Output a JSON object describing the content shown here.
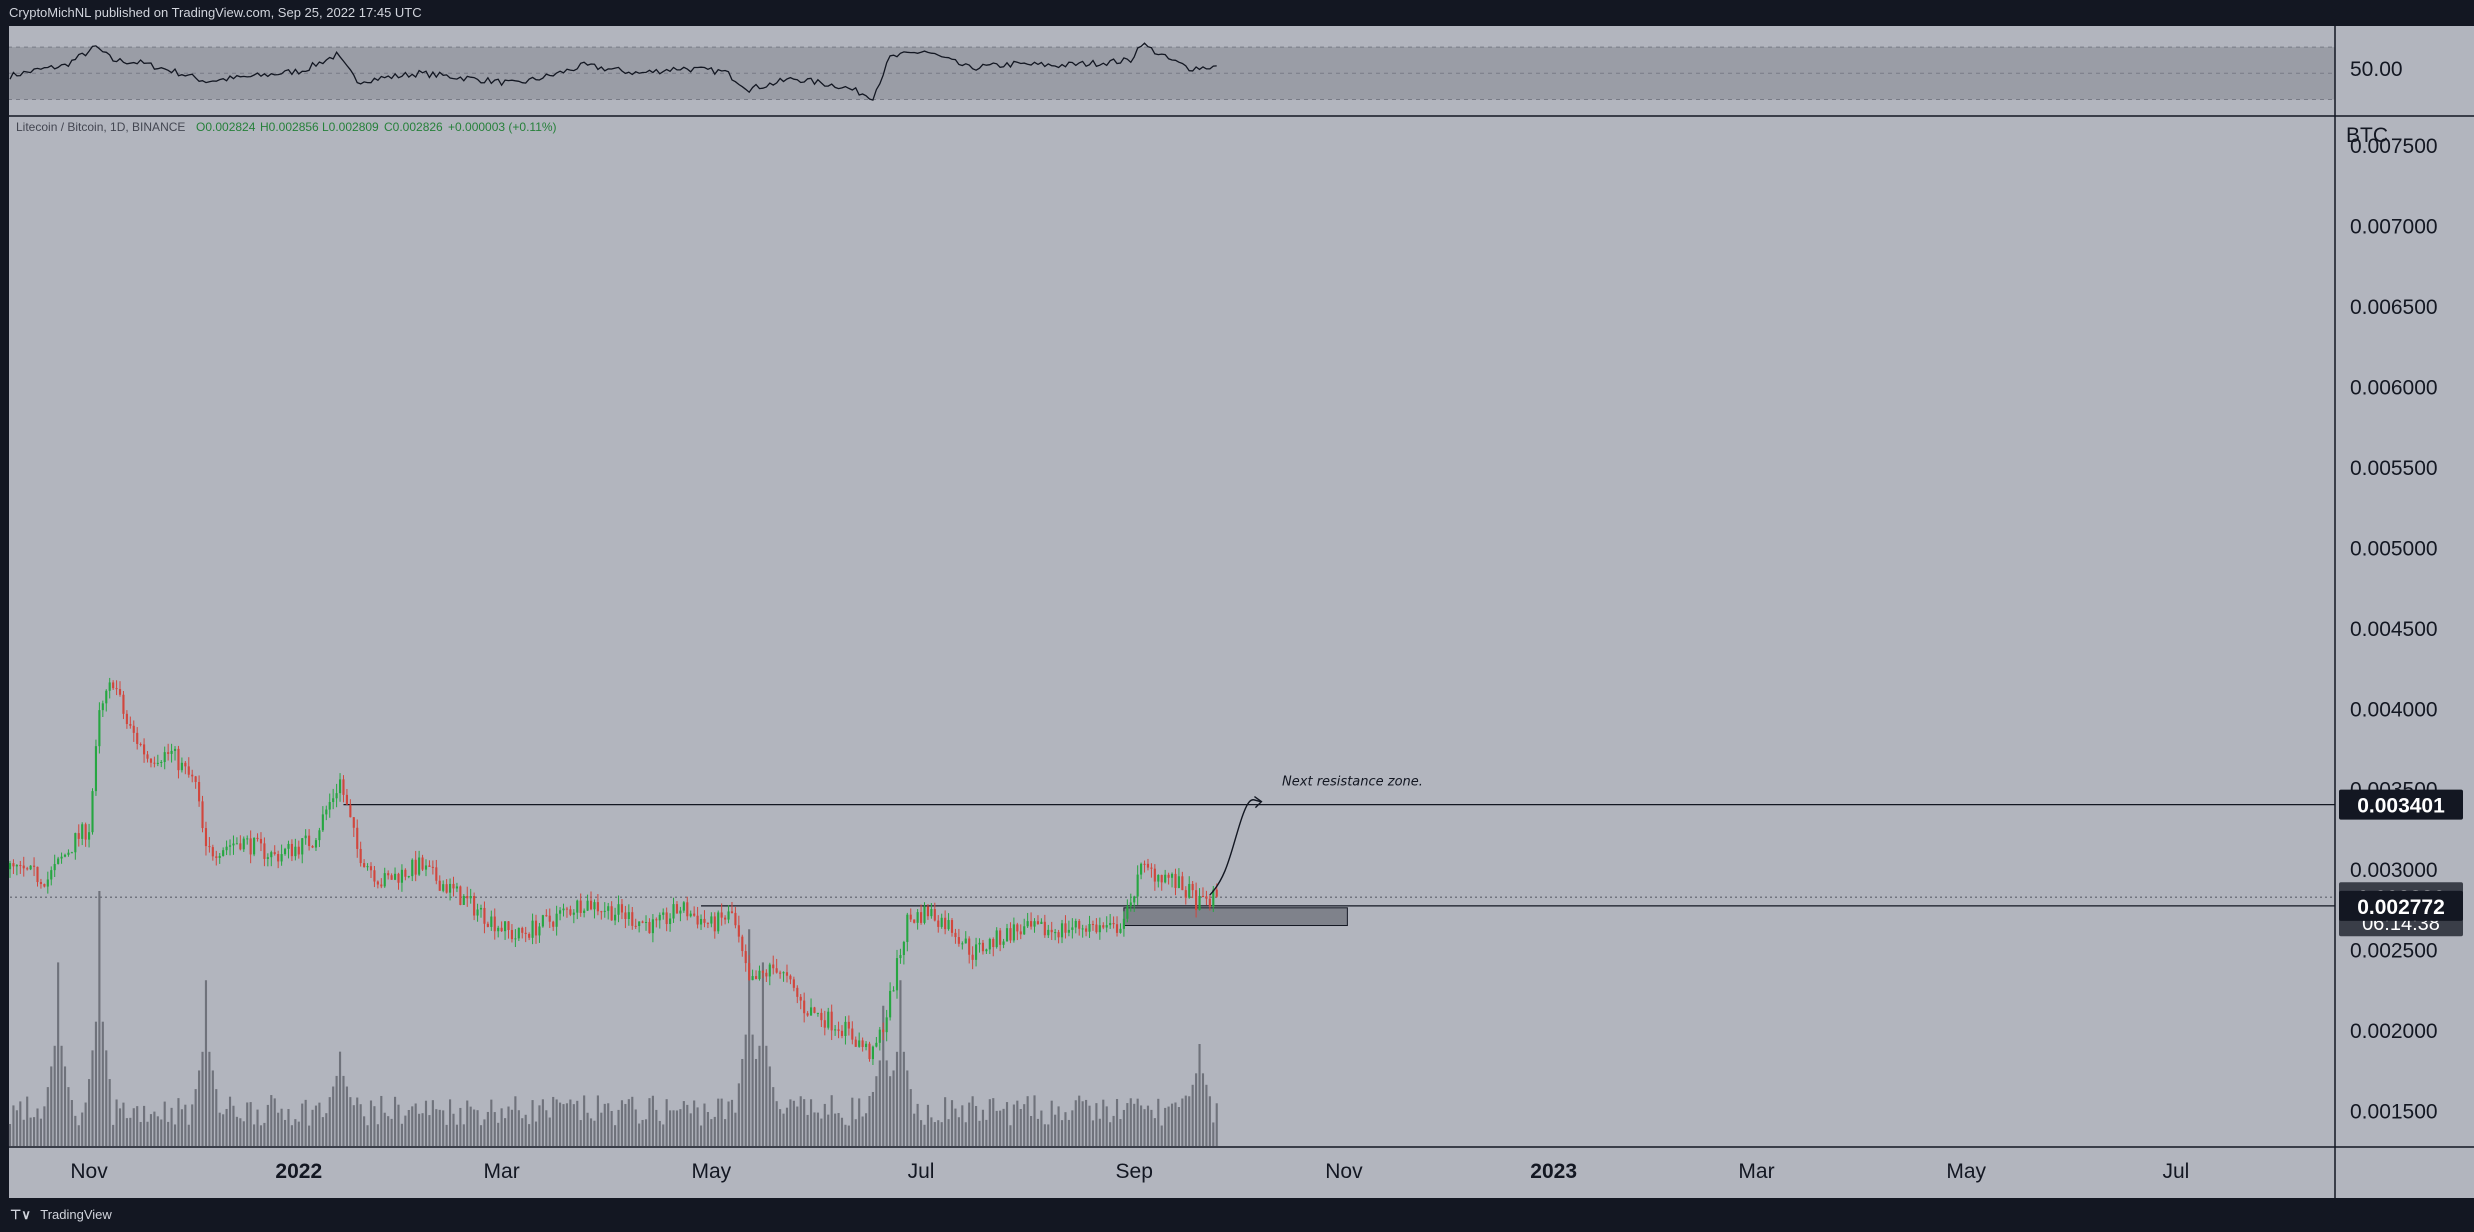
{
  "header": {
    "publish_line": "CryptoMichNL published on TradingView.com, Sep 25, 2022 17:45 UTC"
  },
  "footer": {
    "brand": "TradingView",
    "logo_icon": "tradingview-logo-icon"
  },
  "colors": {
    "background": "#b2b5be",
    "panel_border": "#131722",
    "up": "#26a641",
    "down": "#d1463d",
    "volume": "#6f727b",
    "label_bg": "#131722",
    "label_text": "#ffffff"
  },
  "chart_data": {
    "type": "candlestick",
    "symbol_line": "Litecoin / Bitcoin, 1D, BINANCE",
    "ohlc": {
      "open": "O0.002824",
      "high": "H0.002856",
      "low": "L0.002809",
      "close": "C0.002826",
      "change": "+0.000003 (+0.11%)"
    },
    "price_unit": "BTC",
    "price_ticks": [
      "0.007500",
      "0.007000",
      "0.006500",
      "0.006000",
      "0.005500",
      "0.005000",
      "0.004500",
      "0.004000",
      "0.003500",
      "0.003000",
      "0.002500",
      "0.002000",
      "0.001500"
    ],
    "price_ylim": [
      0.00128,
      0.00768
    ],
    "x_ticks": [
      "Nov",
      "2022",
      "Mar",
      "May",
      "Jul",
      "Sep",
      "Nov",
      "2023",
      "Mar",
      "May",
      "Jul"
    ],
    "x_tick_dates": [
      "2021-11-01",
      "2022-01-01",
      "2022-03-01",
      "2022-05-01",
      "2022-07-01",
      "2022-09-01",
      "2022-11-01",
      "2023-01-01",
      "2023-03-01",
      "2023-05-01",
      "2023-07-01"
    ],
    "x_range": [
      "2021-10-09",
      "2023-07-24"
    ],
    "price_anchors": [
      [
        "2021-10-09",
        0.003
      ],
      [
        "2021-10-20",
        0.00294
      ],
      [
        "2021-10-28",
        0.00318
      ],
      [
        "2021-11-01",
        0.00326
      ],
      [
        "2021-11-04",
        0.00395
      ],
      [
        "2021-11-08",
        0.00418
      ],
      [
        "2021-11-12",
        0.0039
      ],
      [
        "2021-11-18",
        0.0037
      ],
      [
        "2021-11-25",
        0.00372
      ],
      [
        "2021-12-02",
        0.00352
      ],
      [
        "2021-12-05",
        0.0031
      ],
      [
        "2021-12-15",
        0.00318
      ],
      [
        "2021-12-25",
        0.00308
      ],
      [
        "2022-01-05",
        0.00318
      ],
      [
        "2022-01-13",
        0.00355
      ],
      [
        "2022-01-18",
        0.00312
      ],
      [
        "2022-01-25",
        0.00292
      ],
      [
        "2022-02-05",
        0.00302
      ],
      [
        "2022-02-15",
        0.00286
      ],
      [
        "2022-02-25",
        0.0027
      ],
      [
        "2022-03-05",
        0.00258
      ],
      [
        "2022-03-15",
        0.00268
      ],
      [
        "2022-03-25",
        0.0028
      ],
      [
        "2022-04-05",
        0.00272
      ],
      [
        "2022-04-15",
        0.00264
      ],
      [
        "2022-04-22",
        0.00276
      ],
      [
        "2022-05-01",
        0.00265
      ],
      [
        "2022-05-07",
        0.00272
      ],
      [
        "2022-05-12",
        0.00228
      ],
      [
        "2022-05-20",
        0.0024
      ],
      [
        "2022-05-28",
        0.00214
      ],
      [
        "2022-06-08",
        0.00202
      ],
      [
        "2022-06-17",
        0.00184
      ],
      [
        "2022-06-21",
        0.0021
      ],
      [
        "2022-06-27",
        0.00268
      ],
      [
        "2022-07-03",
        0.00274
      ],
      [
        "2022-07-10",
        0.00264
      ],
      [
        "2022-07-16",
        0.00248
      ],
      [
        "2022-07-28",
        0.00262
      ],
      [
        "2022-08-08",
        0.00262
      ],
      [
        "2022-08-18",
        0.00265
      ],
      [
        "2022-08-26",
        0.00262
      ],
      [
        "2022-08-31",
        0.00275
      ],
      [
        "2022-09-02",
        0.003
      ],
      [
        "2022-09-10",
        0.00296
      ],
      [
        "2022-09-17",
        0.00285
      ],
      [
        "2022-09-20",
        0.00278
      ],
      [
        "2022-09-25",
        0.002826
      ]
    ],
    "volume_spikes": [
      [
        "2021-11-04",
        1.0
      ],
      [
        "2021-10-23",
        0.72
      ],
      [
        "2021-12-05",
        0.65
      ],
      [
        "2022-01-13",
        0.37
      ],
      [
        "2022-05-12",
        0.85
      ],
      [
        "2022-05-16",
        0.72
      ],
      [
        "2022-06-20",
        0.55
      ],
      [
        "2022-06-25",
        0.65
      ],
      [
        "2022-09-20",
        0.4
      ]
    ],
    "horizontal_lines": [
      {
        "price": 0.003401,
        "from": "2022-01-14",
        "to": "2023-07-31",
        "style": "solid"
      },
      {
        "price": 0.002772,
        "from": "2022-04-28",
        "to": "2023-07-31",
        "style": "solid"
      },
      {
        "price": 0.002826,
        "from": "2021-10-09",
        "to": "2023-07-31",
        "style": "dotted"
      }
    ],
    "zone": {
      "from": "2022-08-29",
      "to": "2022-11-02",
      "top": 0.00276,
      "bottom": 0.00265
    },
    "projection": [
      [
        "2022-09-23",
        0.00284
      ],
      [
        "2022-09-28",
        0.00295
      ],
      [
        "2022-10-02",
        0.0033
      ],
      [
        "2022-10-08",
        0.00342
      ]
    ],
    "annotation": {
      "text": "Next resistance zone.",
      "date": "2022-10-14",
      "price": 0.00352
    },
    "price_labels": [
      {
        "value": "0.003401",
        "price": 0.003401
      },
      {
        "value": "0.002826",
        "price": 0.002826,
        "sub": "06:14:38"
      },
      {
        "value": "0.002772",
        "price": 0.002772
      }
    ],
    "rsi": {
      "level_label": "50.00",
      "ylim": [
        22,
        80
      ],
      "band": [
        30,
        70
      ],
      "points": [
        [
          "2021-10-09",
          48
        ],
        [
          "2021-10-16",
          52
        ],
        [
          "2021-10-25",
          56
        ],
        [
          "2021-11-03",
          70
        ],
        [
          "2021-11-08",
          60
        ],
        [
          "2021-11-16",
          58
        ],
        [
          "2021-11-25",
          52
        ],
        [
          "2021-12-05",
          44
        ],
        [
          "2021-12-20",
          48
        ],
        [
          "2022-01-02",
          52
        ],
        [
          "2022-01-12",
          64
        ],
        [
          "2022-01-18",
          44
        ],
        [
          "2022-02-05",
          50
        ],
        [
          "2022-02-20",
          46
        ],
        [
          "2022-03-05",
          42
        ],
        [
          "2022-03-15",
          48
        ],
        [
          "2022-03-25",
          56
        ],
        [
          "2022-04-10",
          50
        ],
        [
          "2022-04-22",
          54
        ],
        [
          "2022-05-05",
          51
        ],
        [
          "2022-05-12",
          38
        ],
        [
          "2022-05-25",
          46
        ],
        [
          "2022-06-08",
          40
        ],
        [
          "2022-06-17",
          32
        ],
        [
          "2022-06-22",
          62
        ],
        [
          "2022-07-02",
          67
        ],
        [
          "2022-07-15",
          54
        ],
        [
          "2022-07-28",
          57
        ],
        [
          "2022-08-10",
          56
        ],
        [
          "2022-08-22",
          58
        ],
        [
          "2022-08-31",
          60
        ],
        [
          "2022-09-03",
          73
        ],
        [
          "2022-09-10",
          62
        ],
        [
          "2022-09-17",
          54
        ],
        [
          "2022-09-25",
          55
        ]
      ]
    }
  }
}
